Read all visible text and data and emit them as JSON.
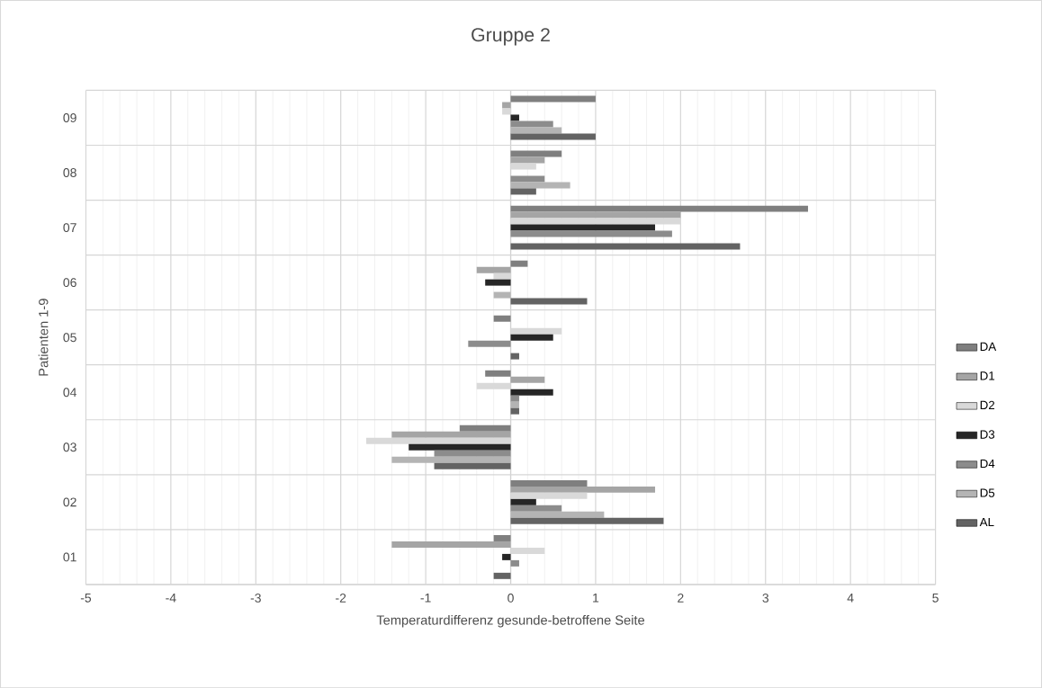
{
  "chart_data": {
    "type": "bar",
    "orientation": "horizontal",
    "title": "Gruppe 2",
    "xlabel": "Temperaturdifferenz gesunde-betroffene Seite",
    "ylabel": "Patienten 1-9",
    "categories": [
      "09",
      "08",
      "07",
      "06",
      "05",
      "04",
      "03",
      "02",
      "01"
    ],
    "series": [
      {
        "name": "DA",
        "color": "#7f7f7f",
        "values": [
          1.0,
          0.6,
          3.5,
          0.2,
          -0.2,
          -0.3,
          -0.6,
          0.9,
          -0.2
        ]
      },
      {
        "name": "D1",
        "color": "#a5a5a5",
        "values": [
          -0.1,
          0.4,
          2.0,
          -0.4,
          0,
          0.4,
          -1.4,
          1.7,
          -1.4
        ]
      },
      {
        "name": "D2",
        "color": "#d9d9d9",
        "values": [
          -0.1,
          0.3,
          2.0,
          -0.2,
          0.6,
          -0.4,
          -1.7,
          0.9,
          0.4
        ]
      },
      {
        "name": "D3",
        "color": "#262626",
        "values": [
          0.1,
          0,
          1.7,
          -0.3,
          0.5,
          0.5,
          -1.2,
          0.3,
          -0.1
        ]
      },
      {
        "name": "D4",
        "color": "#8c8c8c",
        "values": [
          0.5,
          0.4,
          1.9,
          0,
          -0.5,
          0.1,
          -0.9,
          0.6,
          0.1
        ]
      },
      {
        "name": "D5",
        "color": "#b4b4b4",
        "values": [
          0.6,
          0.7,
          0,
          -0.2,
          0,
          0.1,
          -1.4,
          1.1,
          0
        ]
      },
      {
        "name": "AL",
        "color": "#636363",
        "values": [
          1.0,
          0.3,
          2.7,
          0.9,
          0.1,
          0.1,
          -0.9,
          1.8,
          -0.2
        ]
      }
    ],
    "xlim": [
      -5,
      5
    ],
    "xticks": [
      -5,
      -4,
      -3,
      -2,
      -1,
      0,
      1,
      2,
      3,
      4,
      5
    ],
    "grid": true,
    "legend": "right"
  }
}
